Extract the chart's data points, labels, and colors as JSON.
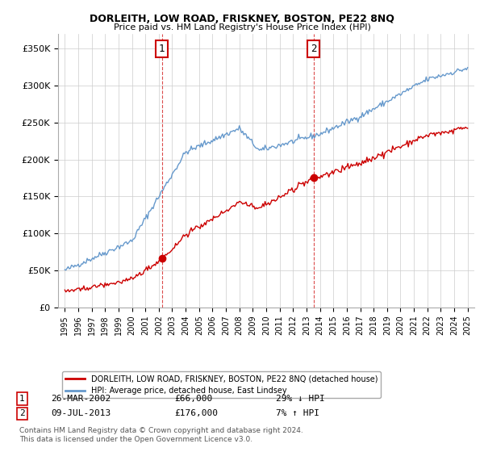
{
  "title": "DORLEITH, LOW ROAD, FRISKNEY, BOSTON, PE22 8NQ",
  "subtitle": "Price paid vs. HM Land Registry's House Price Index (HPI)",
  "legend_line1": "DORLEITH, LOW ROAD, FRISKNEY, BOSTON, PE22 8NQ (detached house)",
  "legend_line2": "HPI: Average price, detached house, East Lindsey",
  "footnote1": "Contains HM Land Registry data © Crown copyright and database right 2024.",
  "footnote2": "This data is licensed under the Open Government Licence v3.0.",
  "annotation1": {
    "num": "1",
    "date": "26-MAR-2002",
    "price": "£66,000",
    "pct": "29% ↓ HPI"
  },
  "annotation2": {
    "num": "2",
    "date": "09-JUL-2013",
    "price": "£176,000",
    "pct": "7% ↑ HPI"
  },
  "vline1_x": 2002.23,
  "vline2_x": 2013.52,
  "dot1_x": 2002.23,
  "dot1_y": 66000,
  "dot2_x": 2013.52,
  "dot2_y": 176000,
  "ylim": [
    0,
    370000
  ],
  "xlim": [
    1994.5,
    2025.5
  ],
  "red_color": "#cc0000",
  "blue_color": "#6699cc",
  "background_color": "#ffffff",
  "grid_color": "#cccccc"
}
